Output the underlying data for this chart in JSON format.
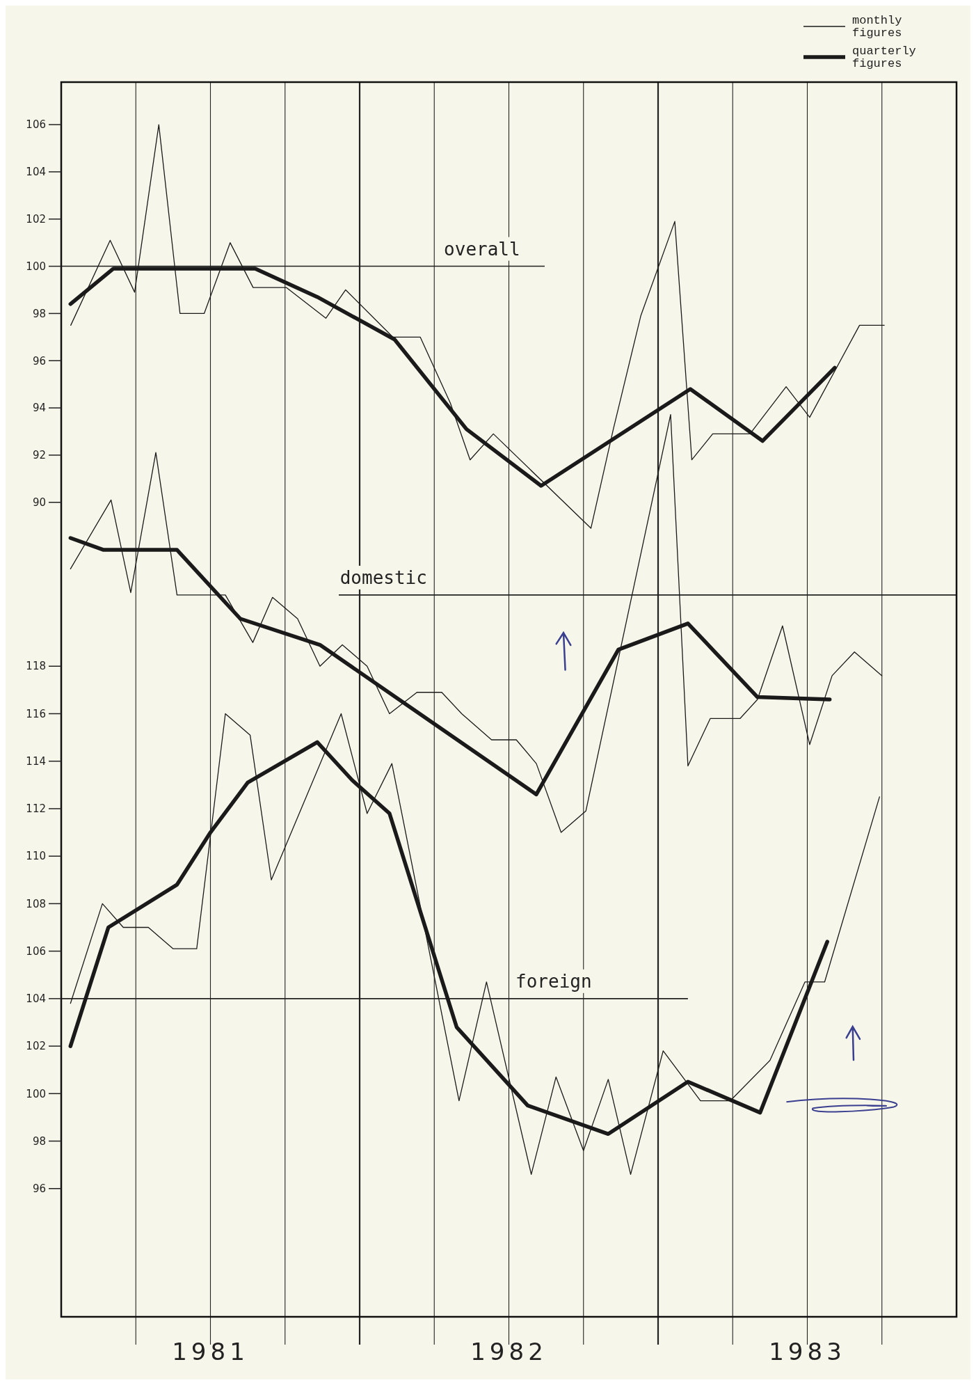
{
  "chart_data": {
    "type": "line",
    "xlim": [
      1981,
      1984
    ],
    "xticks": [
      {
        "value": 1981.25,
        "label": null
      },
      {
        "value": 1981.5,
        "label": "1981"
      },
      {
        "value": 1981.75,
        "label": null
      },
      {
        "value": 1982,
        "label": null
      },
      {
        "value": 1982.25,
        "label": null
      },
      {
        "value": 1982.5,
        "label": "1982"
      },
      {
        "value": 1982.75,
        "label": null
      },
      {
        "value": 1983,
        "label": null
      },
      {
        "value": 1983.25,
        "label": null
      },
      {
        "value": 1983.5,
        "label": "1983"
      },
      {
        "value": 1983.75,
        "label": null
      }
    ],
    "ylim": [
      55.5,
      107.8
    ],
    "yticks": [
      90,
      92,
      94,
      96,
      98,
      100,
      102,
      104,
      106
    ],
    "y2lim": [
      90.6,
      142.6
    ],
    "y2ticks": [
      96,
      98,
      100,
      102,
      104,
      106,
      108,
      110,
      112,
      114,
      116,
      118
    ],
    "grid": "x",
    "legend": "top right",
    "ref_lines": [
      {
        "axis": "y",
        "value": 100,
        "label": "overall"
      },
      {
        "axis": "y2",
        "value": 121,
        "label": "domestic"
      },
      {
        "axis": "y2",
        "value": 104,
        "label": "foreign"
      }
    ],
    "series": [
      {
        "name": "monthly figures",
        "color": "#1a1a1a",
        "x": [
          1981.032,
          1981.164,
          1981.246,
          1981.327,
          1981.398,
          1981.479,
          1981.566,
          1981.643,
          1981.754,
          1981.887,
          1981.953,
          1982.111,
          1982.203,
          1982.304,
          1982.37,
          1982.448,
          1982.775,
          1982.85,
          1982.942,
          1983.056,
          1983.113,
          1983.183,
          1983.308,
          1983.429,
          1983.508,
          1983.675,
          1983.758
        ],
        "values": [
          97.5,
          101.1,
          98.9,
          106,
          98,
          98,
          101,
          99.1,
          99.1,
          97.8,
          99,
          97,
          97,
          94.2,
          91.8,
          92.9,
          88.9,
          93.1,
          97.9,
          101.9,
          91.8,
          92.9,
          92.9,
          94.9,
          93.6,
          97.5,
          97.5
        ]
      },
      {
        "name": "quarterly figures",
        "color": "#1a1a1a",
        "x": [
          1981.031,
          1981.175,
          1981.65,
          1981.858,
          1982.117,
          1982.358,
          1982.608,
          1983.108,
          1983.35,
          1983.592
        ],
        "values": [
          98.4,
          99.9,
          99.9,
          98.7,
          96.9,
          93.1,
          90.7,
          94.8,
          92.6,
          95.7
        ]
      },
      {
        "color": "#1a1a1a",
        "axis": "y2",
        "x": [
          1981.031,
          1981.167,
          1981.233,
          1981.317,
          1981.388,
          1981.55,
          1981.642,
          1981.708,
          1981.792,
          1981.867,
          1981.942,
          1982.025,
          1982.1,
          1982.192,
          1982.275,
          1982.342,
          1982.442,
          1982.525,
          1982.592,
          1982.675,
          1982.758,
          1983.042,
          1983.1,
          1983.175,
          1983.275,
          1983.333,
          1983.417,
          1983.508,
          1983.583,
          1983.658,
          1983.75
        ],
        "values": [
          122.1,
          125,
          121.1,
          127,
          121,
          121,
          119,
          120.9,
          120,
          118,
          118.9,
          118,
          116,
          116.9,
          116.9,
          116,
          114.9,
          114.9,
          113.9,
          111,
          111.9,
          128.6,
          113.8,
          115.8,
          115.8,
          116.6,
          119.7,
          114.7,
          117.6,
          118.6,
          117.6
        ]
      },
      {
        "color": "#1a1a1a",
        "axis": "y2",
        "x": [
          1981.031,
          1981.142,
          1981.388,
          1981.6,
          1981.867,
          1982.592,
          1982.867,
          1983.1,
          1983.333,
          1983.575
        ],
        "values": [
          123.4,
          122.9,
          122.9,
          120,
          118.9,
          112.6,
          118.7,
          119.8,
          116.7,
          116.6
        ]
      },
      {
        "color": "#1a1a1a",
        "axis": "y2",
        "x": [
          1981.031,
          1981.138,
          1981.208,
          1981.292,
          1981.375,
          1981.454,
          1981.55,
          1981.633,
          1981.704,
          1981.938,
          1982.025,
          1982.108,
          1982.333,
          1982.425,
          1982.575,
          1982.658,
          1982.75,
          1982.833,
          1982.908,
          1983.017,
          1983.142,
          1983.242,
          1983.375,
          1983.492,
          1983.558,
          1983.742
        ],
        "values": [
          103.8,
          108,
          107,
          107,
          106.1,
          106.1,
          116,
          115.1,
          109,
          116,
          111.8,
          113.9,
          99.7,
          104.7,
          96.6,
          100.7,
          97.6,
          100.6,
          96.6,
          101.8,
          99.7,
          99.7,
          101.4,
          104.7,
          104.7,
          112.5
        ]
      },
      {
        "color": "#1a1a1a",
        "axis": "y2",
        "x": [
          1981.031,
          1981.158,
          1981.388,
          1981.5,
          1981.625,
          1981.858,
          1981.975,
          1982.1,
          1982.325,
          1982.563,
          1982.833,
          1983.1,
          1983.342,
          1983.567
        ],
        "values": [
          102,
          107,
          108.8,
          111,
          113.1,
          114.8,
          113.2,
          111.8,
          102.8,
          99.5,
          98.3,
          100.5,
          99.2,
          106.4
        ]
      }
    ]
  }
}
